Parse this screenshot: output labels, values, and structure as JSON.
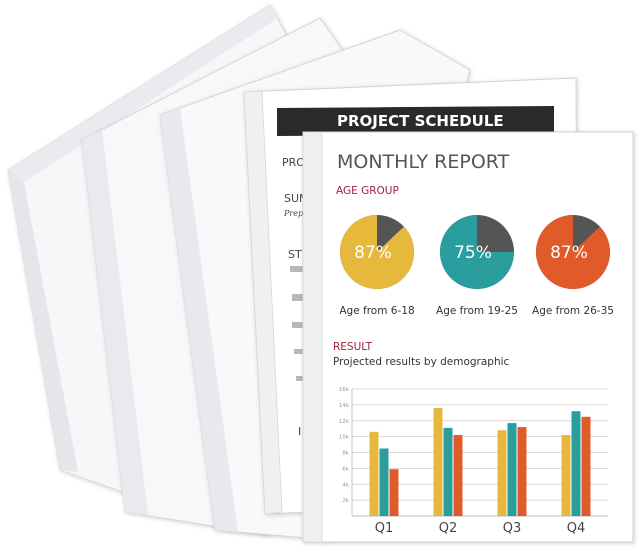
{
  "back_sheet": {
    "title": "PROJECT SCHEDULE",
    "lines": [
      "PRO",
      "SUM",
      "Prepa",
      "STE",
      "I"
    ]
  },
  "report": {
    "title": "MONTHLY REPORT",
    "age_section": "AGE GROUP",
    "result_section": "RESULT",
    "subtitle": "Projected results by demographic"
  },
  "pies": [
    {
      "percent": 87,
      "label_pct": "87%",
      "label": "Age from 6-18",
      "color": "#e6b83a"
    },
    {
      "percent": 75,
      "label_pct": "75%",
      "label": "Age from 19-25",
      "color": "#2a9d9f"
    },
    {
      "percent": 87,
      "label_pct": "87%",
      "label": "Age from 26-35",
      "color": "#e05a2a"
    }
  ],
  "chart_data": {
    "type": "bar",
    "categories": [
      "Q1",
      "Q2",
      "Q3",
      "Q4"
    ],
    "yticks": [
      "2k",
      "4k",
      "6k",
      "8k",
      "10k",
      "12k",
      "14k",
      "16k"
    ],
    "ylim": [
      0,
      16
    ],
    "series": [
      {
        "values": [
          10.6,
          13.6,
          10.8,
          10.2
        ],
        "color": "#e6b83a"
      },
      {
        "values": [
          8.5,
          11.1,
          11.7,
          13.2
        ],
        "color": "#2a9d9f"
      },
      {
        "values": [
          5.9,
          10.2,
          11.2,
          12.5
        ],
        "color": "#e05a2a"
      }
    ]
  },
  "colors": {
    "pie_dark": "#555555",
    "banner": "#2b2b2b",
    "grid": "#cfcfcf"
  }
}
